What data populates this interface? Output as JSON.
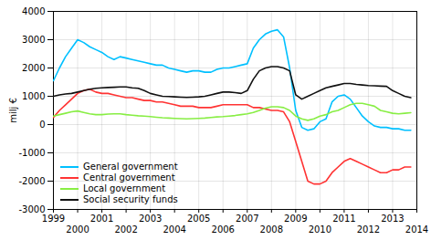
{
  "chart_data": {
    "type": "line",
    "ylabel": "milj €",
    "x": [
      1999.0,
      1999.25,
      1999.5,
      1999.75,
      2000.0,
      2000.25,
      2000.5,
      2000.75,
      2001.0,
      2001.25,
      2001.5,
      2001.75,
      2002.0,
      2002.25,
      2002.5,
      2002.75,
      2003.0,
      2003.25,
      2003.5,
      2003.75,
      2004.0,
      2004.25,
      2004.5,
      2004.75,
      2005.0,
      2005.25,
      2005.5,
      2005.75,
      2006.0,
      2006.25,
      2006.5,
      2006.75,
      2007.0,
      2007.25,
      2007.5,
      2007.75,
      2008.0,
      2008.25,
      2008.5,
      2008.75,
      2009.0,
      2009.25,
      2009.5,
      2009.75,
      2010.0,
      2010.25,
      2010.5,
      2010.75,
      2011.0,
      2011.25,
      2011.5,
      2011.75,
      2012.0,
      2012.25,
      2012.5,
      2012.75,
      2013.0,
      2013.25,
      2013.5,
      2013.75
    ],
    "series": [
      {
        "name": "General government",
        "color": "#00c0ff",
        "values": [
          1550,
          2000,
          2400,
          2700,
          3000,
          2900,
          2750,
          2650,
          2550,
          2400,
          2300,
          2400,
          2350,
          2300,
          2250,
          2200,
          2150,
          2100,
          2100,
          2000,
          1950,
          1900,
          1850,
          1900,
          1900,
          1850,
          1850,
          1950,
          2000,
          2000,
          2050,
          2100,
          2150,
          2700,
          3000,
          3200,
          3300,
          3350,
          3100,
          2000,
          500,
          -100,
          -200,
          -150,
          100,
          200,
          800,
          1000,
          1050,
          900,
          600,
          300,
          100,
          -50,
          -100,
          -100,
          -150,
          -150,
          -200,
          -200
        ]
      },
      {
        "name": "Central government",
        "color": "#ff3333",
        "values": [
          250,
          500,
          700,
          900,
          1100,
          1200,
          1250,
          1150,
          1100,
          1100,
          1050,
          1000,
          950,
          950,
          900,
          850,
          850,
          800,
          800,
          750,
          700,
          650,
          650,
          650,
          600,
          600,
          600,
          650,
          700,
          700,
          700,
          700,
          700,
          600,
          600,
          550,
          500,
          500,
          450,
          100,
          -600,
          -1300,
          -2000,
          -2100,
          -2100,
          -2000,
          -1700,
          -1500,
          -1300,
          -1200,
          -1300,
          -1400,
          -1500,
          -1600,
          -1700,
          -1700,
          -1600,
          -1600,
          -1500,
          -1500
        ]
      },
      {
        "name": "Local government",
        "color": "#88ee44",
        "values": [
          300,
          350,
          400,
          450,
          480,
          430,
          380,
          350,
          350,
          370,
          380,
          380,
          350,
          330,
          310,
          300,
          280,
          260,
          240,
          230,
          220,
          210,
          200,
          210,
          220,
          230,
          250,
          270,
          280,
          300,
          320,
          350,
          380,
          430,
          500,
          580,
          630,
          630,
          600,
          500,
          300,
          200,
          150,
          200,
          300,
          350,
          450,
          500,
          600,
          700,
          750,
          750,
          700,
          650,
          500,
          450,
          400,
          380,
          400,
          420
        ]
      },
      {
        "name": "Social security funds",
        "color": "#111111",
        "values": [
          1000,
          1050,
          1080,
          1100,
          1150,
          1200,
          1250,
          1280,
          1300,
          1310,
          1320,
          1330,
          1330,
          1300,
          1280,
          1200,
          1100,
          1050,
          1000,
          990,
          980,
          970,
          960,
          970,
          980,
          1000,
          1050,
          1100,
          1150,
          1150,
          1130,
          1100,
          1200,
          1600,
          1900,
          2000,
          2050,
          2050,
          2000,
          1900,
          1050,
          900,
          1000,
          1100,
          1200,
          1300,
          1350,
          1400,
          1450,
          1450,
          1420,
          1400,
          1380,
          1370,
          1360,
          1350,
          1200,
          1100,
          1000,
          950
        ]
      }
    ],
    "xlim": [
      1999,
      2014
    ],
    "ylim": [
      -3000,
      4000
    ],
    "xticks": [
      1999,
      2000,
      2001,
      2002,
      2003,
      2004,
      2005,
      2006,
      2007,
      2008,
      2009,
      2010,
      2011,
      2012,
      2013,
      2014
    ],
    "yticks": [
      -3000,
      -2000,
      -1000,
      0,
      1000,
      2000,
      3000,
      4000
    ],
    "grid": true,
    "legend": "lower left"
  }
}
